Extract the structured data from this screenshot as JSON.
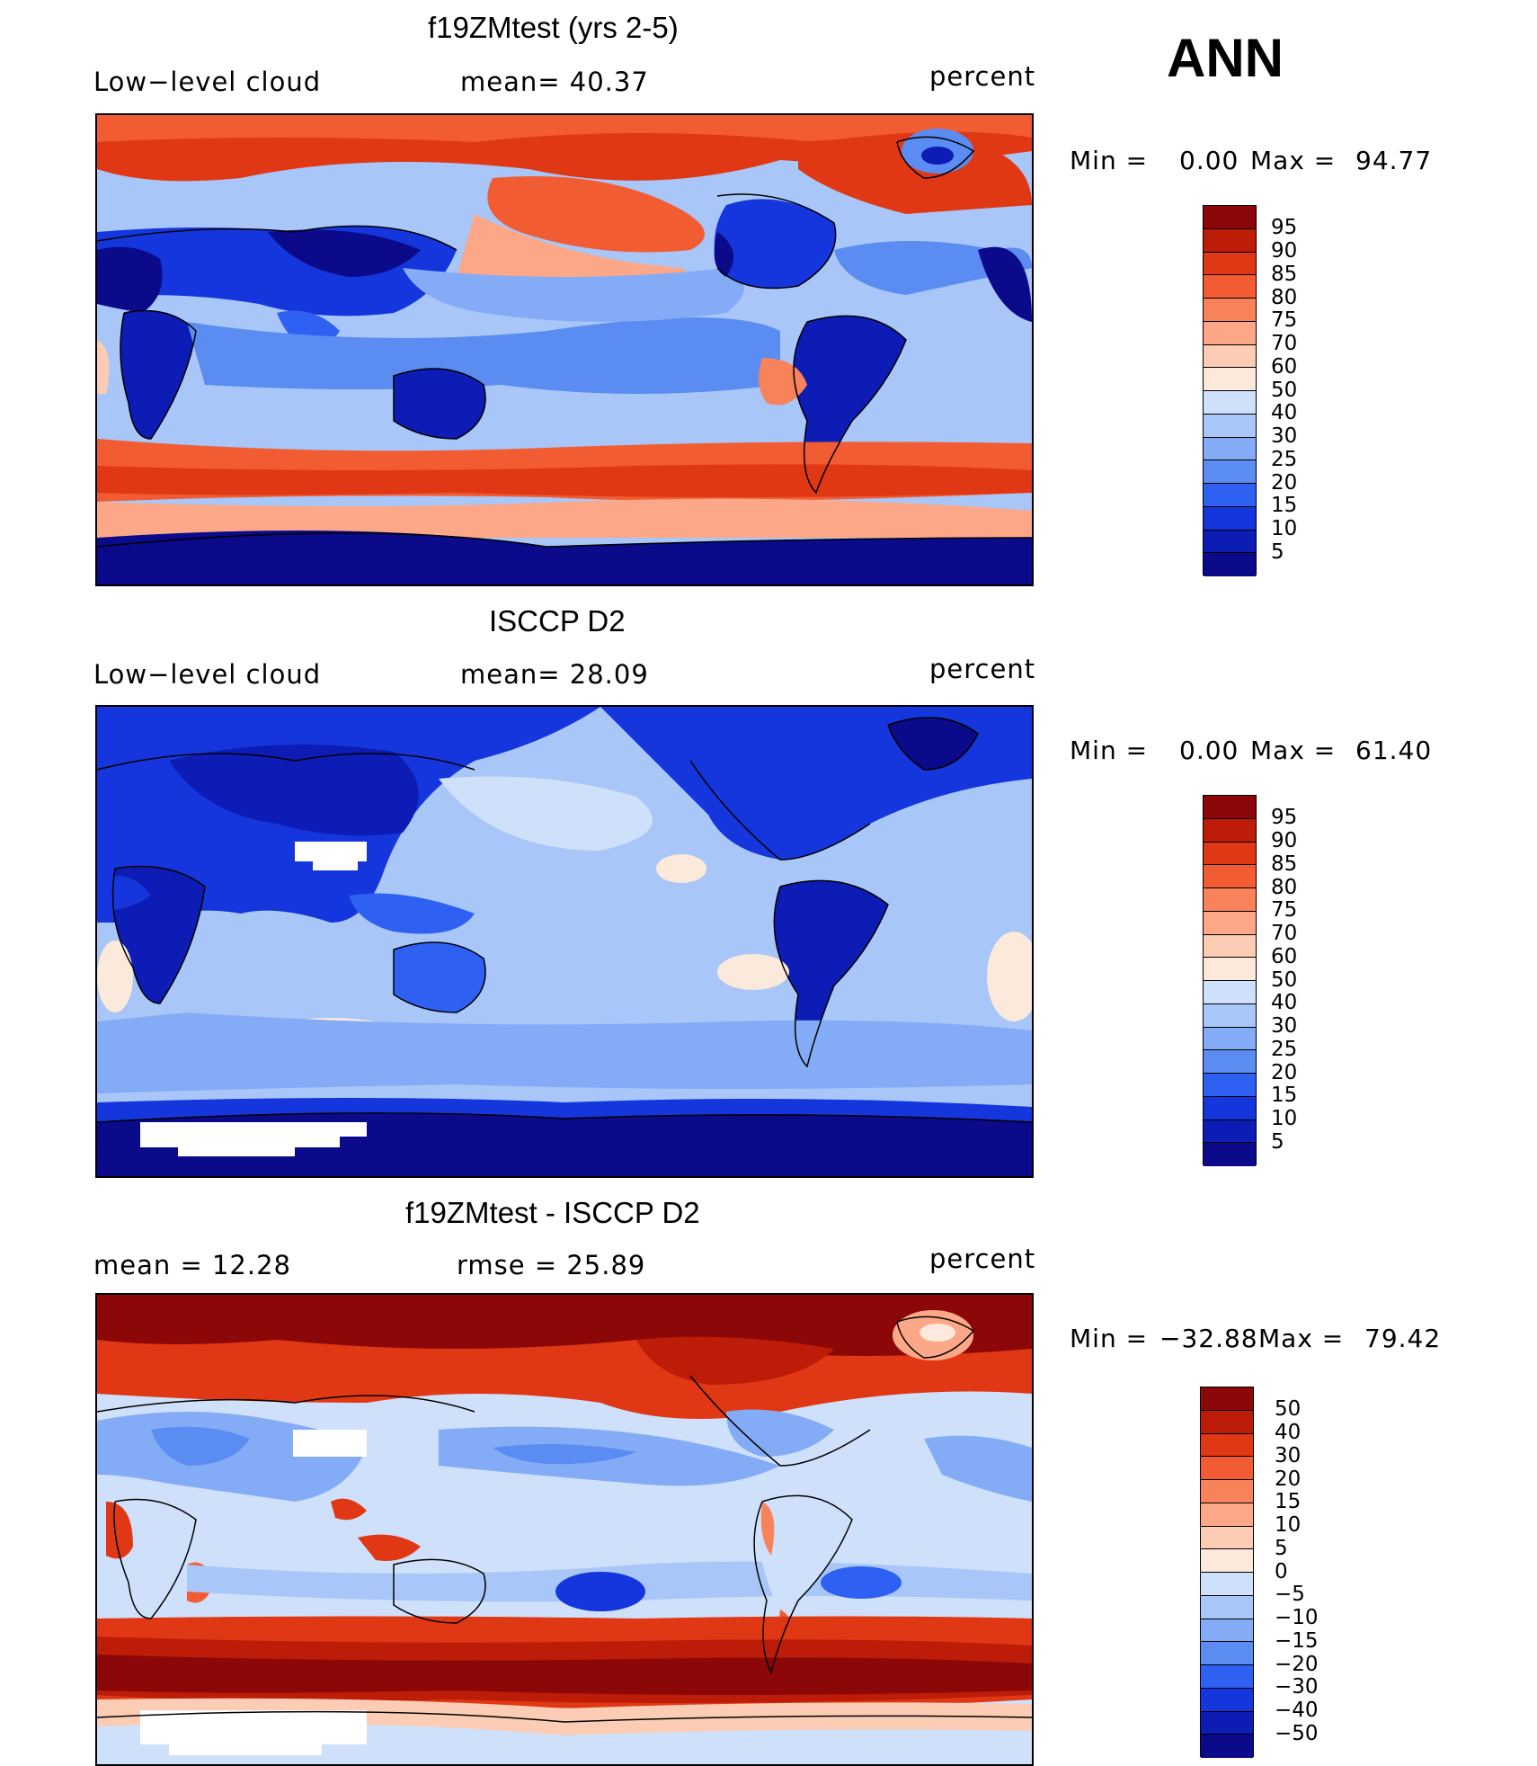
{
  "season": "ANN",
  "colors": {
    "abs_scale": [
      "#0a0a8a",
      "#0c1cb4",
      "#1436dc",
      "#2e60f2",
      "#5a8cf2",
      "#84acf6",
      "#a8c6f8",
      "#cfe0fa",
      "#fbe9dc",
      "#fccdb4",
      "#fca888",
      "#f8825a",
      "#f25c32",
      "#e03814",
      "#bc1c08",
      "#8c0808"
    ],
    "diff_scale": [
      "#0a0a8a",
      "#0c1cb4",
      "#1436dc",
      "#2e60f2",
      "#5a8cf2",
      "#84acf6",
      "#a8c6f8",
      "#cfe0fa",
      "#fbe9dc",
      "#fccdb4",
      "#fca888",
      "#f8825a",
      "#f25c32",
      "#e03814",
      "#bc1c08",
      "#8c0808"
    ]
  },
  "panels": [
    {
      "title": "f19ZMtest (yrs 2-5)",
      "left_label": "Low−level cloud",
      "center_label": "mean=   40.37",
      "units": "percent",
      "min_label": "Min =",
      "min_value": "0.00",
      "max_label": "Max =",
      "max_value": "94.77",
      "scale_labels": [
        "95",
        "90",
        "85",
        "80",
        "75",
        "70",
        "60",
        "50",
        "40",
        "30",
        "25",
        "20",
        "15",
        "10",
        "5"
      ]
    },
    {
      "title": "ISCCP D2",
      "left_label": "Low−level cloud",
      "center_label": "mean=   28.09",
      "units": "percent",
      "min_label": "Min =",
      "min_value": "0.00",
      "max_label": "Max =",
      "max_value": "61.40",
      "scale_labels": [
        "95",
        "90",
        "85",
        "80",
        "75",
        "70",
        "60",
        "50",
        "40",
        "30",
        "25",
        "20",
        "15",
        "10",
        "5"
      ]
    },
    {
      "title": "f19ZMtest - ISCCP D2",
      "left_label": "mean =    12.28",
      "center_label": "rmse =    25.89",
      "units": "percent",
      "min_label": "Min =",
      "min_value": "−32.88",
      "max_label": "Max =",
      "max_value": "79.42",
      "scale_labels": [
        "50",
        "40",
        "30",
        "20",
        "15",
        "10",
        "5",
        "0",
        "−5",
        "−10",
        "−15",
        "−20",
        "−30",
        "−40",
        "−50"
      ]
    }
  ]
}
